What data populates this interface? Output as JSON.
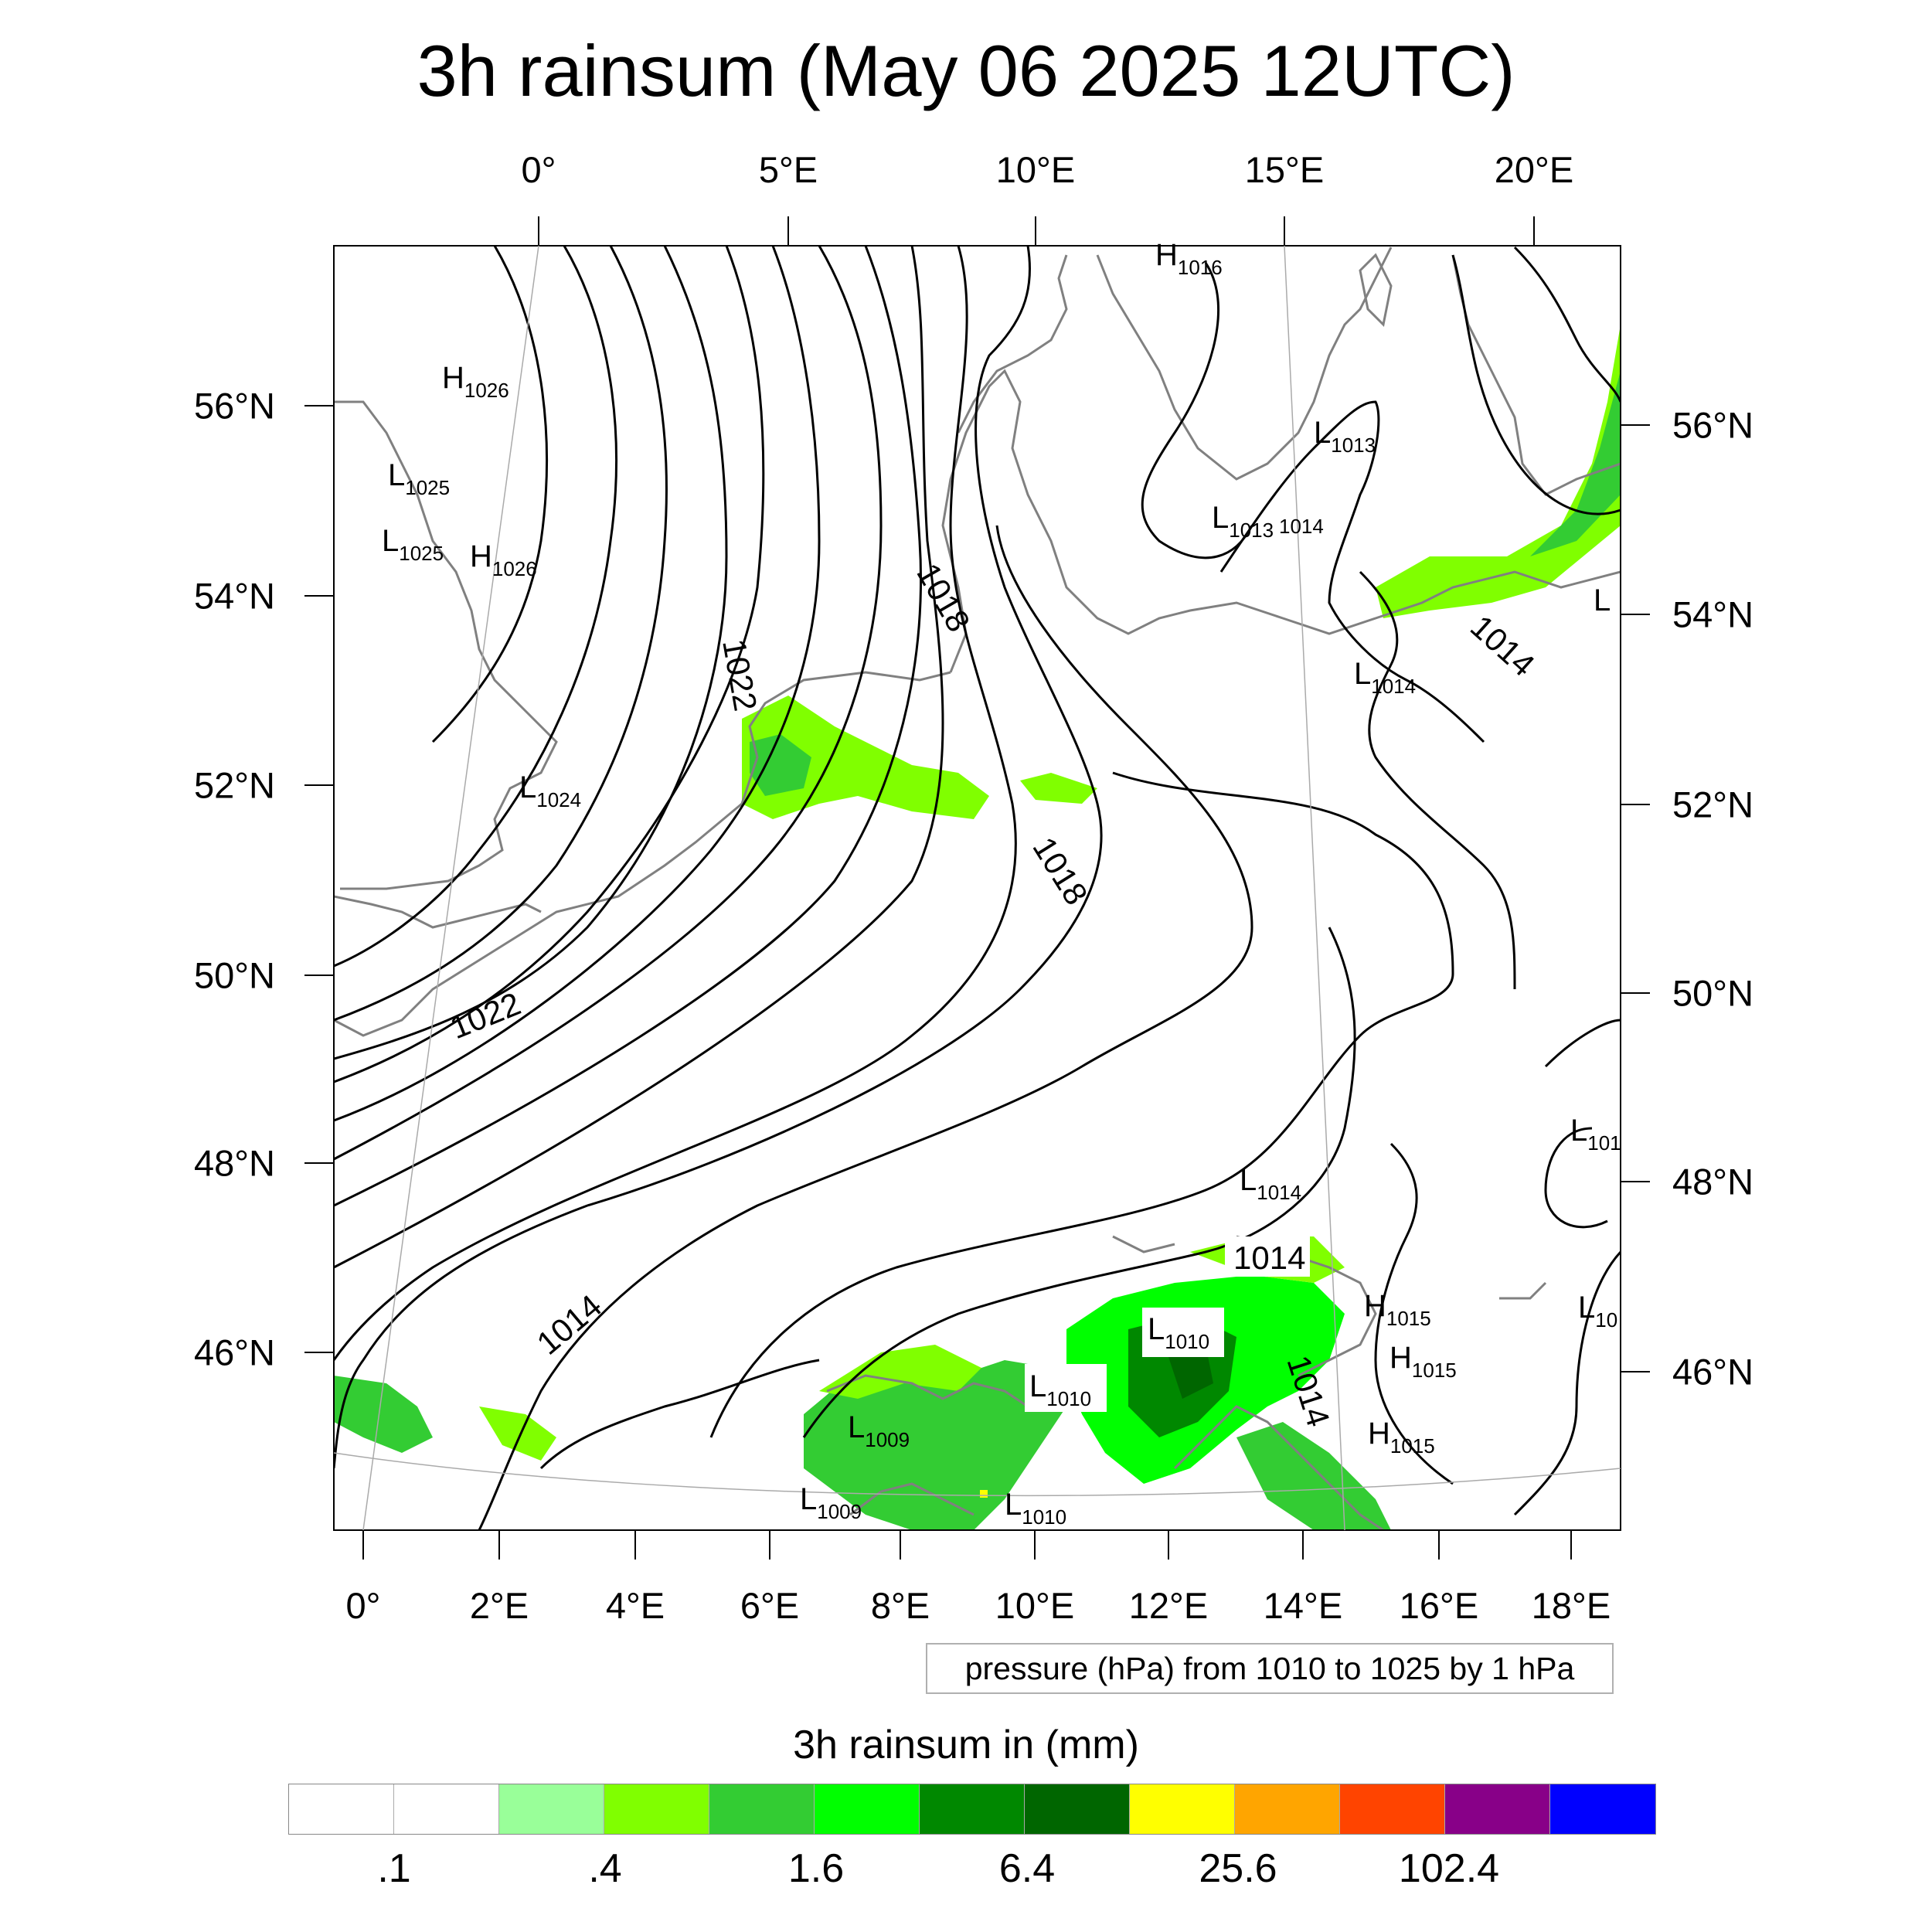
{
  "title": "3h rainsum (May 06 2025 12UTC)",
  "map": {
    "top_lon_labels": [
      "0°",
      "5°E",
      "10°E",
      "15°E",
      "20°E"
    ],
    "bottom_lon_labels": [
      "0°",
      "2°E",
      "4°E",
      "6°E",
      "8°E",
      "10°E",
      "12°E",
      "14°E",
      "16°E",
      "18°E"
    ],
    "left_lat_labels": [
      "56°N",
      "54°N",
      "52°N",
      "50°N",
      "48°N",
      "46°N"
    ],
    "right_lat_labels": [
      "56°N",
      "54°N",
      "52°N",
      "50°N",
      "48°N",
      "46°N"
    ],
    "contour_labels": [
      "1022",
      "1018",
      "1018",
      "1022",
      "1014",
      "1014",
      "1014",
      "1014"
    ],
    "pressure_centers": [
      {
        "type": "H",
        "value": "1016"
      },
      {
        "type": "H",
        "value": "1026"
      },
      {
        "type": "L",
        "value": "1025"
      },
      {
        "type": "L",
        "value": "1025"
      },
      {
        "type": "H",
        "value": "1026"
      },
      {
        "type": "L",
        "value": "1013"
      },
      {
        "type": "L",
        "value": "1013"
      },
      {
        "type": "",
        "value": "1014"
      },
      {
        "type": "L",
        "value": ""
      },
      {
        "type": "L",
        "value": "1014"
      },
      {
        "type": "L",
        "value": "1024"
      },
      {
        "type": "L",
        "value": "101"
      },
      {
        "type": "L",
        "value": "1014"
      },
      {
        "type": "H",
        "value": "1015"
      },
      {
        "type": "H",
        "value": "1015"
      },
      {
        "type": "H",
        "value": "1015"
      },
      {
        "type": "L",
        "value": "10"
      },
      {
        "type": "L",
        "value": "1010"
      },
      {
        "type": "L",
        "value": "1010"
      },
      {
        "type": "L",
        "value": "1009"
      },
      {
        "type": "L",
        "value": "1009"
      },
      {
        "type": "L",
        "value": "1010"
      }
    ]
  },
  "info_box": "pressure (hPa) from 1010 to 1025 by 1 hPa",
  "colorbar": {
    "title": "3h rainsum in (mm)",
    "colors": [
      "#ffffff",
      "#ffffff",
      "#99ff99",
      "#80ff00",
      "#33cc33",
      "#00ff00",
      "#008800",
      "#006600",
      "#ffff00",
      "#ffa500",
      "#ff4400",
      "#880088",
      "#0000ff"
    ],
    "labels": [
      ".1",
      ".4",
      "1.6",
      "6.4",
      "25.6",
      "102.4"
    ]
  }
}
